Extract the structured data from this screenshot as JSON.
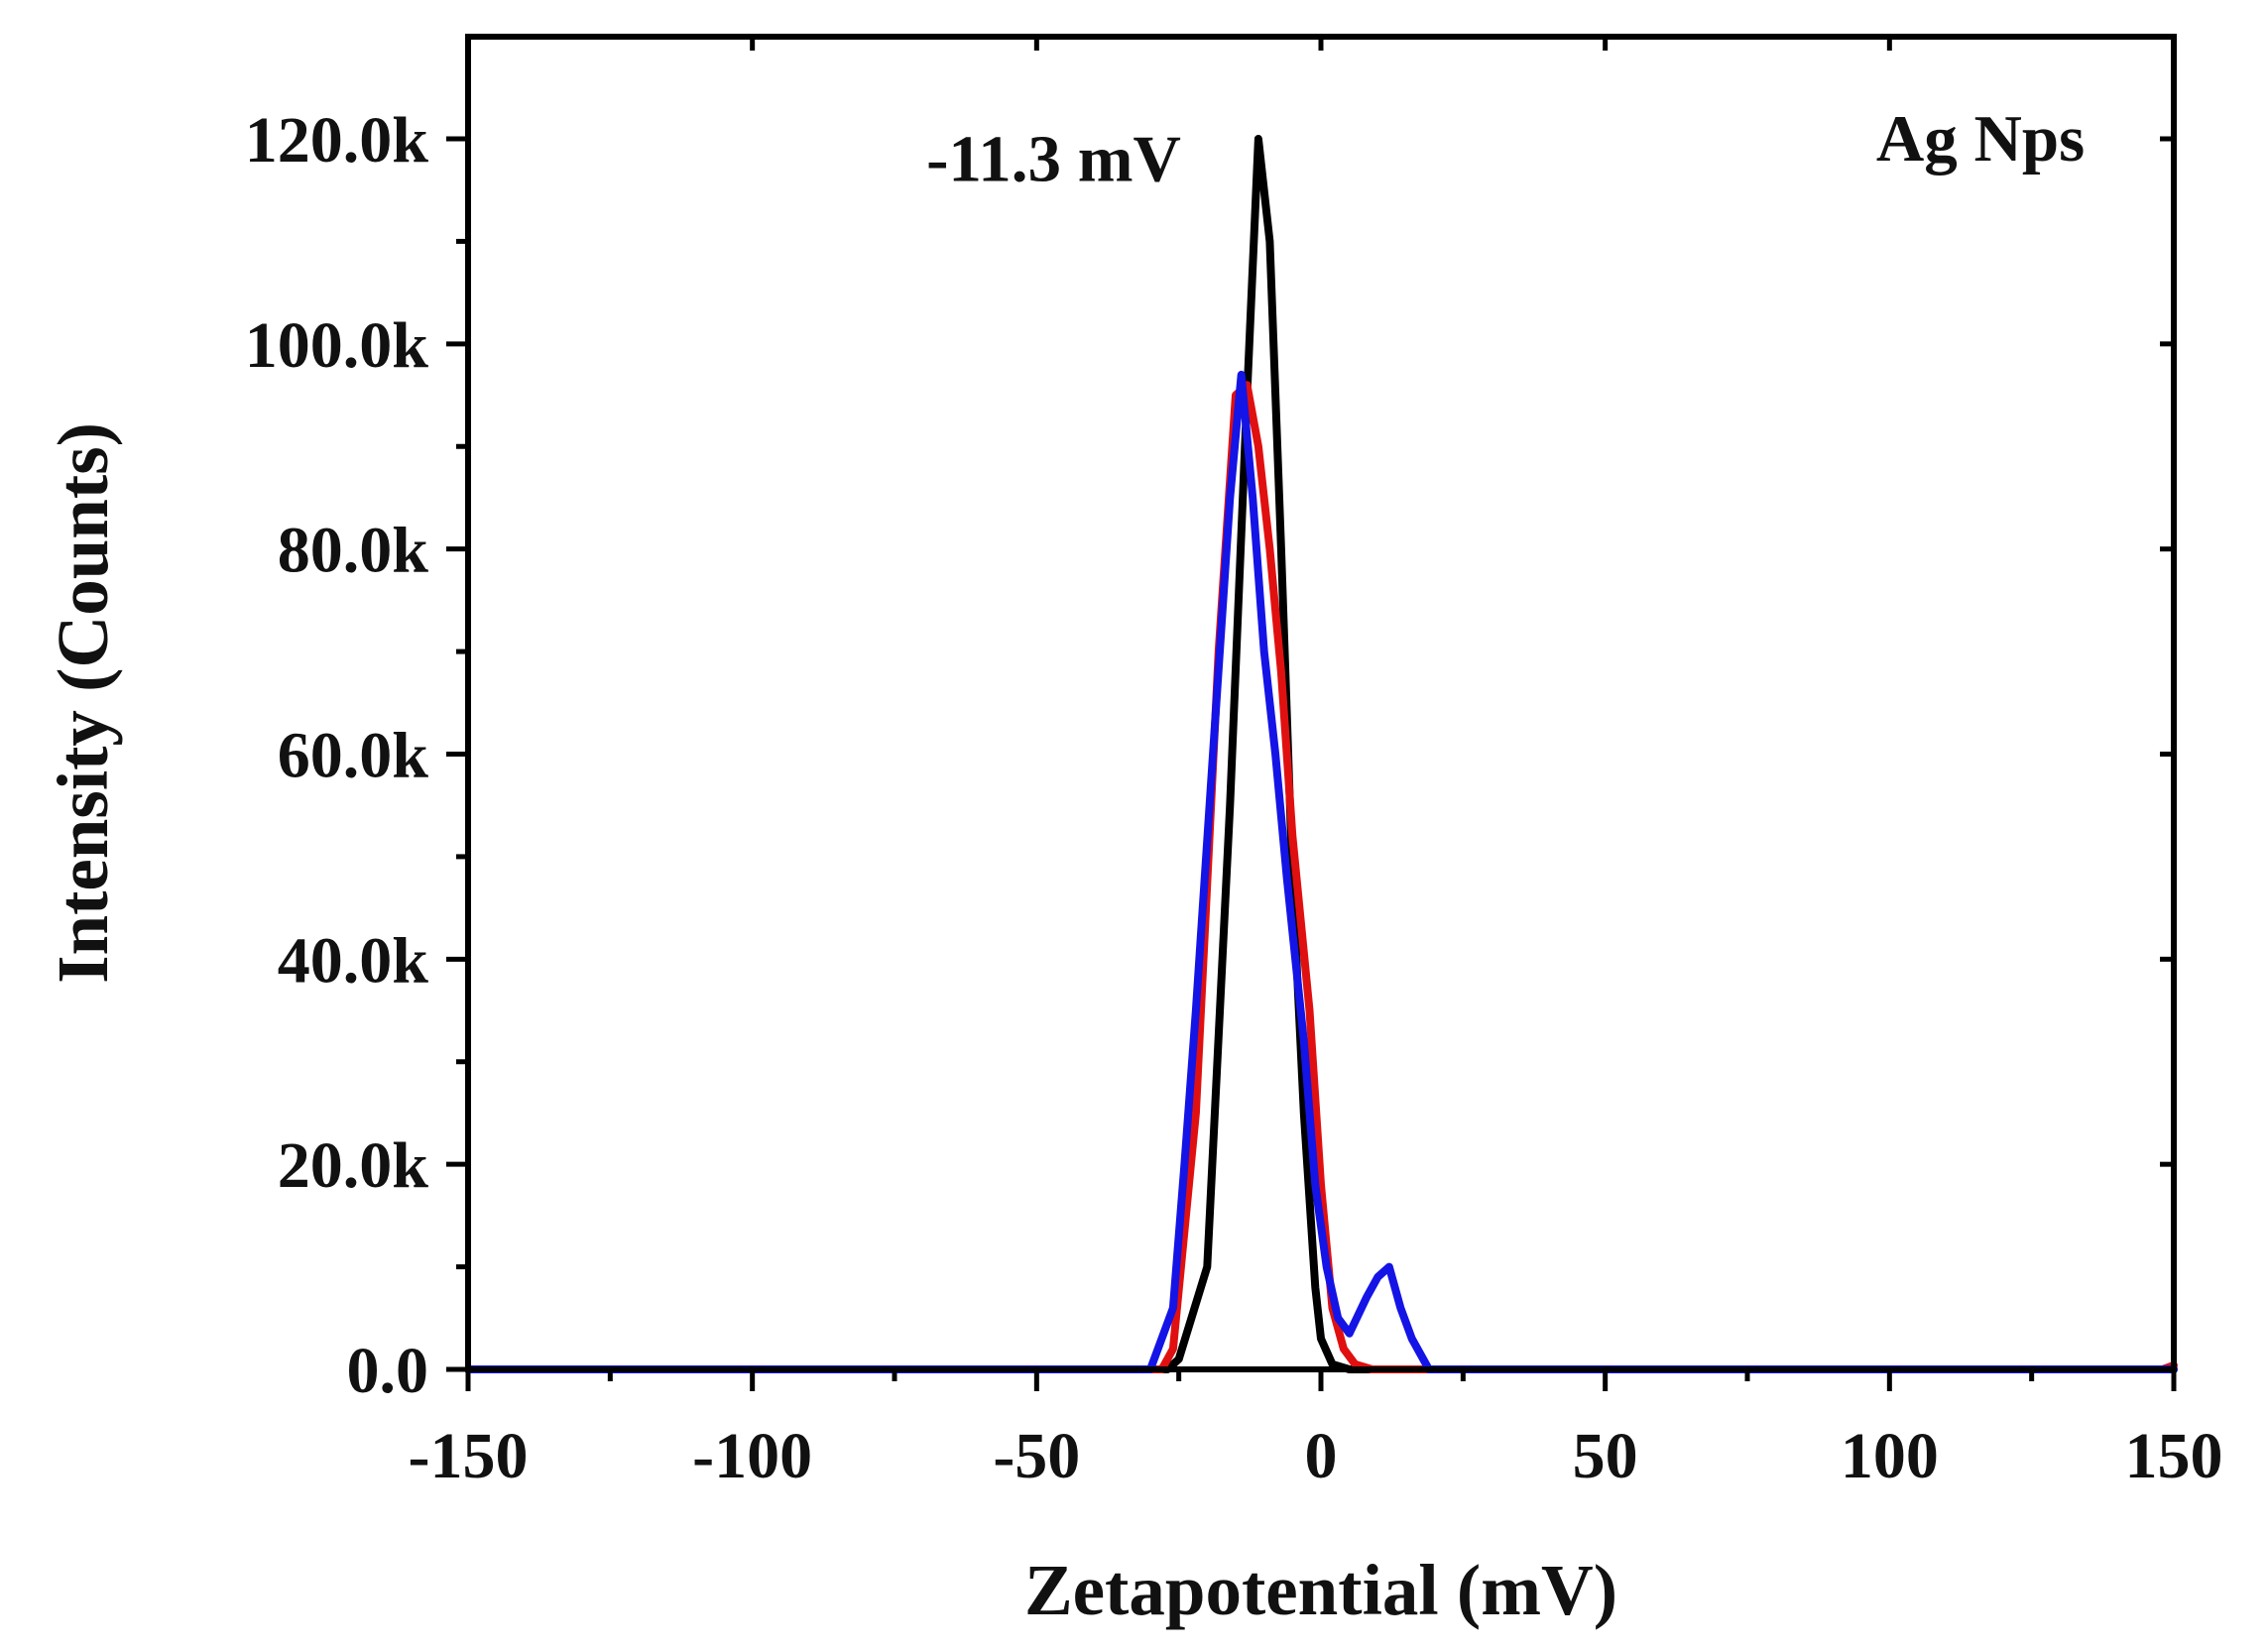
{
  "chart_data": {
    "type": "line",
    "title": "",
    "xlabel": "Zetapotential (mV)",
    "ylabel": "Intensity (Counts)",
    "xlim": [
      -150,
      150
    ],
    "ylim": [
      0,
      130000
    ],
    "xticks": [
      -150,
      -100,
      -50,
      0,
      50,
      100,
      150
    ],
    "xtick_labels": [
      "-150",
      "-100",
      "-50",
      "0",
      "50",
      "100",
      "150"
    ],
    "yticks": [
      0,
      20000,
      40000,
      60000,
      80000,
      100000,
      120000
    ],
    "ytick_labels": [
      "0.0",
      "20.0k",
      "40.0k",
      "60.0k",
      "80.0k",
      "100.0k",
      "120.0k"
    ],
    "grid": false,
    "annotations": [
      {
        "text": "Ag Nps",
        "x": 116,
        "y": 120000
      },
      {
        "text": "-11.3 mV",
        "x": -47,
        "y": 118000
      }
    ],
    "series": [
      {
        "name": "black",
        "color": "#000000",
        "x": [
          -150,
          -27,
          -25,
          -20,
          -16,
          -13,
          -11,
          -9,
          -7,
          -5,
          -3,
          -1,
          0,
          2,
          5,
          150
        ],
        "y": [
          0,
          0,
          1000,
          10000,
          55000,
          95000,
          120000,
          110000,
          80000,
          48000,
          25000,
          8000,
          3000,
          500,
          0,
          0
        ]
      },
      {
        "name": "red",
        "color": "#e01010",
        "x": [
          -150,
          -28,
          -26,
          -22,
          -18,
          -15,
          -13,
          -11,
          -9,
          -7,
          -5,
          -2,
          0,
          2,
          4,
          6,
          9,
          15,
          148,
          150
        ],
        "y": [
          0,
          0,
          2000,
          25000,
          70000,
          95000,
          96000,
          90000,
          80000,
          68000,
          52000,
          35000,
          18000,
          6000,
          2000,
          500,
          0,
          0,
          0,
          400
        ]
      },
      {
        "name": "blue",
        "color": "#1414e6",
        "x": [
          -150,
          -30,
          -26,
          -24,
          -22,
          -19,
          -16,
          -14,
          -12,
          -10,
          -8,
          -6,
          -3,
          -1,
          1,
          3,
          5,
          8,
          10,
          12,
          14,
          16,
          19,
          25,
          150
        ],
        "y": [
          0,
          0,
          6000,
          20000,
          35000,
          60000,
          85000,
          97000,
          85000,
          70000,
          60000,
          48000,
          32000,
          18000,
          10000,
          5000,
          3500,
          7000,
          9000,
          10000,
          6000,
          3000,
          0,
          0,
          0
        ]
      }
    ]
  }
}
